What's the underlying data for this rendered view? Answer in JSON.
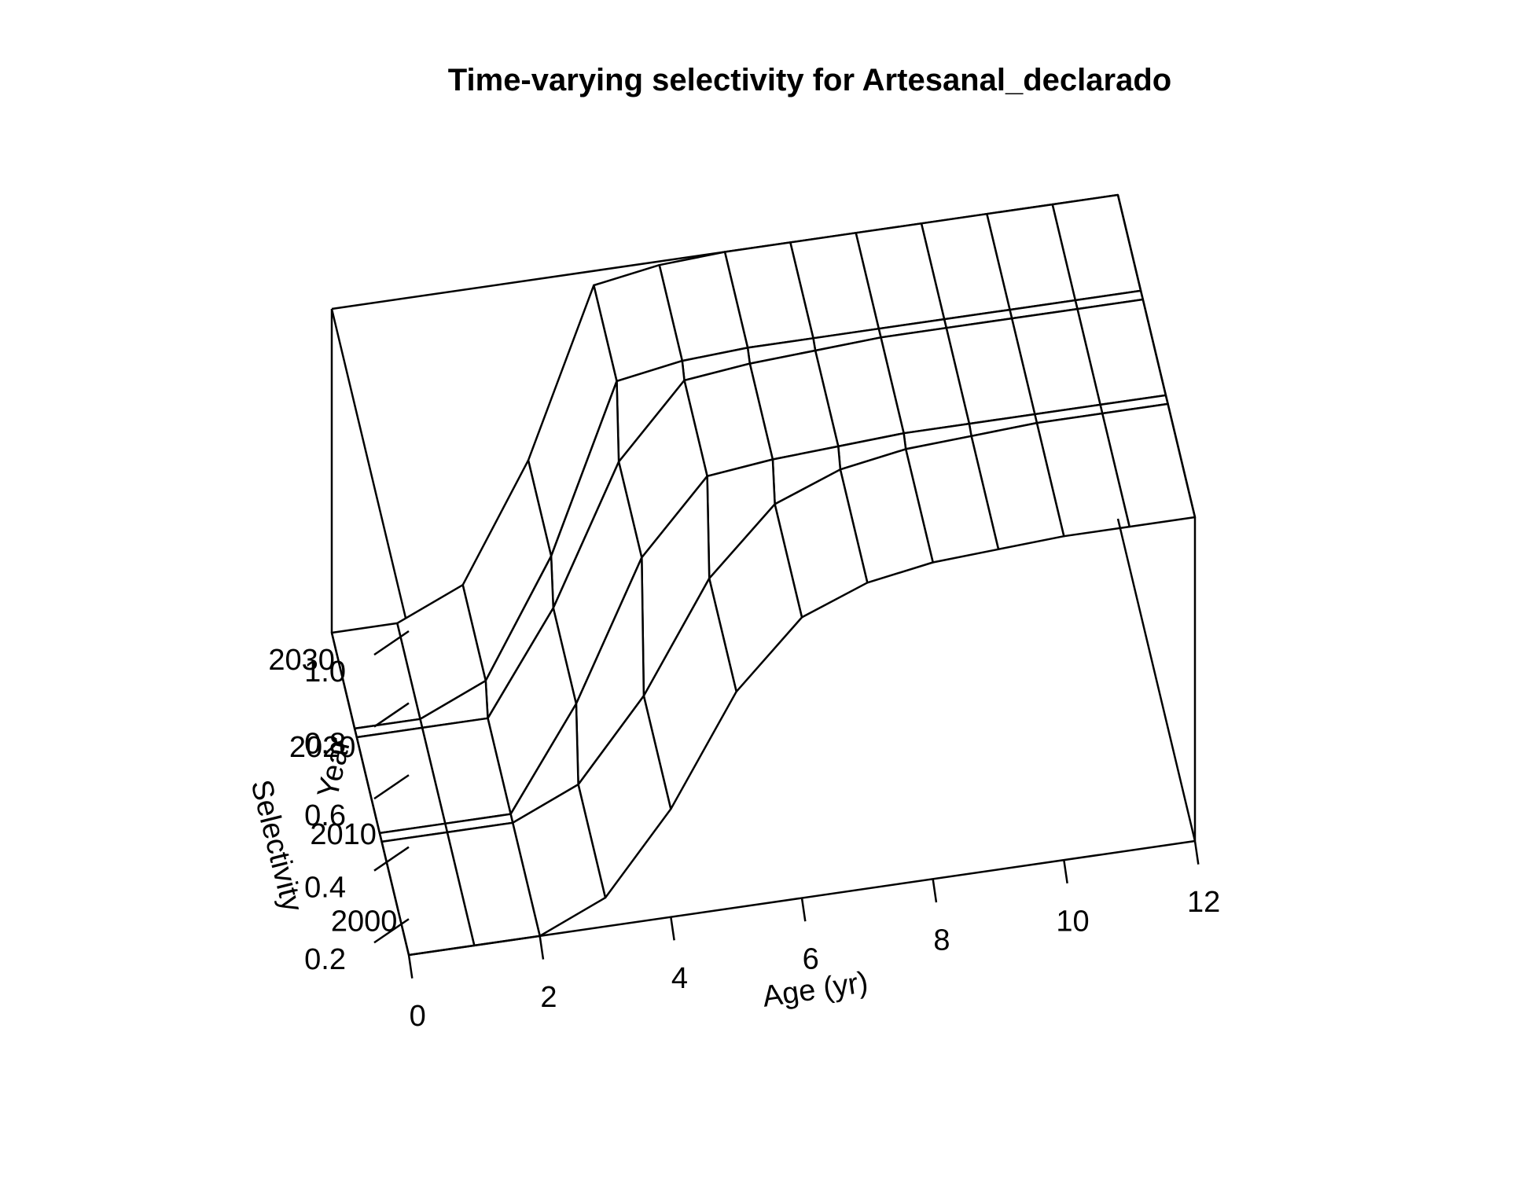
{
  "chart_data": {
    "type": "surface",
    "title": "Time-varying selectivity for Artesanal_declarado",
    "xlabel": "Age (yr)",
    "ylabel": "Year",
    "zlabel": "Selectivity",
    "x_ticks": [
      "0",
      "2",
      "4",
      "6",
      "8",
      "10",
      "12"
    ],
    "y_ticks": [
      "2000",
      "2010",
      "2020",
      "2030"
    ],
    "z_ticks": [
      "0.2",
      "0.4",
      "0.6",
      "0.8",
      "1.0"
    ],
    "xlim": [
      0,
      12
    ],
    "ylim": [
      1996,
      2033
    ],
    "zlim": [
      0.1,
      1.0
    ],
    "ages": [
      0,
      1,
      2,
      3,
      4,
      5,
      6,
      7,
      8,
      9,
      10,
      11,
      12
    ],
    "years": [
      1996,
      2009,
      2010,
      2021,
      2022,
      2033
    ],
    "selectivity": [
      [
        0.1,
        0.1,
        0.1,
        0.18,
        0.4,
        0.7,
        0.88,
        0.95,
        0.98,
        0.99,
        1.0,
        1.0,
        1.0
      ],
      [
        0.1,
        0.1,
        0.1,
        0.18,
        0.4,
        0.7,
        0.88,
        0.95,
        0.98,
        0.99,
        1.0,
        1.0,
        1.0
      ],
      [
        0.1,
        0.1,
        0.1,
        0.38,
        0.76,
        0.96,
        0.98,
        0.99,
        1.0,
        1.0,
        1.0,
        1.0,
        1.0
      ],
      [
        0.1,
        0.1,
        0.1,
        0.38,
        0.76,
        0.96,
        0.98,
        0.99,
        1.0,
        1.0,
        1.0,
        1.0,
        1.0
      ],
      [
        0.1,
        0.1,
        0.18,
        0.5,
        0.96,
        0.99,
        1.0,
        1.0,
        1.0,
        1.0,
        1.0,
        1.0,
        1.0
      ],
      [
        0.1,
        0.1,
        0.18,
        0.5,
        0.96,
        0.99,
        1.0,
        1.0,
        1.0,
        1.0,
        1.0,
        1.0,
        1.0
      ]
    ]
  }
}
